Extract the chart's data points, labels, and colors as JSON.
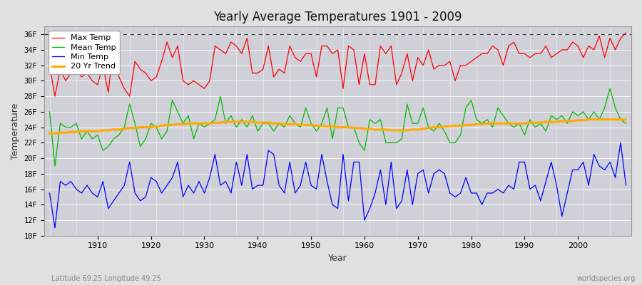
{
  "title": "Yearly Average Temperatures 1901 - 2009",
  "xlabel": "Year",
  "ylabel": "Temperature",
  "subtitle_left": "Latitude 69.25 Longitude 49.25",
  "subtitle_right": "worldspecies.org",
  "start_year": 1901,
  "end_year": 2009,
  "ylim": [
    10,
    37
  ],
  "yticks": [
    10,
    12,
    14,
    16,
    18,
    20,
    22,
    24,
    26,
    28,
    30,
    32,
    34,
    36
  ],
  "ytick_labels": [
    "10F",
    "12F",
    "14F",
    "16F",
    "18F",
    "20F",
    "22F",
    "24F",
    "26F",
    "28F",
    "30F",
    "32F",
    "34F",
    "36F"
  ],
  "max_temp_color": "#ff0000",
  "mean_temp_color": "#00bb00",
  "min_temp_color": "#0000ff",
  "trend_color": "#ffaa00",
  "bg_color": "#e0e0e0",
  "plot_bg_color": "#d0d0d8",
  "grid_color": "#ffffff",
  "legend_labels": [
    "Max Temp",
    "Mean Temp",
    "Min Temp",
    "20 Yr Trend"
  ],
  "max_temp": [
    32.0,
    28.0,
    31.5,
    30.0,
    31.0,
    31.5,
    30.5,
    31.0,
    30.0,
    29.5,
    32.0,
    28.5,
    34.5,
    30.5,
    29.0,
    28.0,
    32.5,
    31.5,
    31.0,
    30.0,
    30.5,
    32.5,
    35.0,
    33.0,
    34.5,
    30.0,
    29.5,
    30.0,
    29.5,
    29.0,
    30.0,
    34.5,
    34.0,
    33.5,
    35.0,
    34.5,
    33.5,
    35.5,
    31.0,
    31.0,
    31.5,
    34.5,
    30.5,
    31.5,
    31.0,
    34.5,
    33.0,
    32.5,
    33.5,
    33.5,
    30.5,
    34.5,
    34.5,
    33.5,
    34.0,
    29.0,
    34.5,
    34.0,
    29.5,
    33.5,
    29.5,
    29.5,
    34.5,
    33.5,
    34.5,
    29.5,
    31.0,
    33.5,
    30.0,
    33.0,
    32.0,
    34.0,
    31.5,
    32.0,
    32.0,
    32.5,
    30.0,
    32.0,
    32.0,
    32.5,
    33.0,
    33.5,
    33.5,
    34.5,
    34.0,
    32.0,
    34.5,
    35.0,
    33.5,
    33.5,
    33.0,
    33.5,
    33.5,
    34.5,
    33.0,
    33.5,
    34.0,
    34.0,
    35.0,
    34.5,
    33.0,
    34.5,
    34.0,
    35.8,
    33.0,
    35.5,
    34.0,
    35.5,
    36.2
  ],
  "mean_temp": [
    26.0,
    19.0,
    24.5,
    24.0,
    24.0,
    24.5,
    22.5,
    23.5,
    22.5,
    23.0,
    21.0,
    21.5,
    22.5,
    23.0,
    24.0,
    27.0,
    24.5,
    21.5,
    22.5,
    24.5,
    24.0,
    22.5,
    23.5,
    27.5,
    26.0,
    24.5,
    25.5,
    22.5,
    24.5,
    24.0,
    24.5,
    25.0,
    28.0,
    24.5,
    25.5,
    24.0,
    25.0,
    24.0,
    25.5,
    23.5,
    24.5,
    24.5,
    23.5,
    24.5,
    24.0,
    25.5,
    24.5,
    24.0,
    26.5,
    24.5,
    23.5,
    24.5,
    26.5,
    22.5,
    26.5,
    26.5,
    24.0,
    24.0,
    22.0,
    21.0,
    25.0,
    24.5,
    25.0,
    22.0,
    22.0,
    22.0,
    22.5,
    27.0,
    24.5,
    24.5,
    26.5,
    24.0,
    23.5,
    24.5,
    23.5,
    22.0,
    22.0,
    23.0,
    26.5,
    27.5,
    25.0,
    24.5,
    25.0,
    24.0,
    26.5,
    25.5,
    24.5,
    24.0,
    24.5,
    23.0,
    25.0,
    24.0,
    24.5,
    23.5,
    25.5,
    25.0,
    25.5,
    24.5,
    26.0,
    25.5,
    26.0,
    25.0,
    26.0,
    25.0,
    26.5,
    29.0,
    26.5,
    25.0,
    24.5
  ],
  "min_temp": [
    15.5,
    11.0,
    17.0,
    16.5,
    17.0,
    16.0,
    15.5,
    16.5,
    15.5,
    15.0,
    17.0,
    13.5,
    14.5,
    15.5,
    16.5,
    19.5,
    15.5,
    14.5,
    15.0,
    17.5,
    17.0,
    15.5,
    16.5,
    17.5,
    19.5,
    15.0,
    16.5,
    15.5,
    17.0,
    15.5,
    17.5,
    20.5,
    16.5,
    17.0,
    15.5,
    19.5,
    16.5,
    20.5,
    16.0,
    16.5,
    16.5,
    21.0,
    20.5,
    16.5,
    15.5,
    19.5,
    15.5,
    16.5,
    19.5,
    16.5,
    16.0,
    20.5,
    17.0,
    14.0,
    13.5,
    20.5,
    14.5,
    19.5,
    19.5,
    12.0,
    13.5,
    15.5,
    18.5,
    14.0,
    19.5,
    13.5,
    14.5,
    18.5,
    14.0,
    18.0,
    18.5,
    15.5,
    18.0,
    18.5,
    18.0,
    15.5,
    15.0,
    15.5,
    17.5,
    15.5,
    15.5,
    14.0,
    15.5,
    15.5,
    16.0,
    15.5,
    16.5,
    16.0,
    19.5,
    19.5,
    16.0,
    16.5,
    14.5,
    17.0,
    19.5,
    16.5,
    12.5,
    15.5,
    18.5,
    18.5,
    19.5,
    16.5,
    20.5,
    19.0,
    18.5,
    19.5,
    17.5,
    22.0,
    16.5
  ],
  "trend": [
    23.2,
    23.2,
    23.3,
    23.3,
    23.4,
    23.4,
    23.5,
    23.5,
    23.5,
    23.5,
    23.6,
    23.6,
    23.7,
    23.7,
    23.8,
    23.9,
    23.9,
    24.0,
    24.0,
    24.0,
    24.1,
    24.2,
    24.3,
    24.3,
    24.4,
    24.4,
    24.5,
    24.5,
    24.5,
    24.5,
    24.5,
    24.6,
    24.6,
    24.7,
    24.7,
    24.7,
    24.7,
    24.7,
    24.7,
    24.6,
    24.6,
    24.6,
    24.5,
    24.5,
    24.4,
    24.4,
    24.4,
    24.3,
    24.3,
    24.3,
    24.2,
    24.2,
    24.1,
    24.1,
    24.0,
    24.0,
    24.0,
    23.9,
    23.9,
    23.8,
    23.8,
    23.7,
    23.7,
    23.7,
    23.6,
    23.6,
    23.6,
    23.6,
    23.7,
    23.7,
    23.8,
    23.9,
    24.0,
    24.0,
    24.1,
    24.1,
    24.2,
    24.2,
    24.3,
    24.3,
    24.4,
    24.4,
    24.5,
    24.5,
    24.5,
    24.5,
    24.5,
    24.5,
    24.5,
    24.5,
    24.6,
    24.6,
    24.6,
    24.7,
    24.7,
    24.7,
    24.8,
    24.8,
    24.8,
    24.9,
    24.9,
    25.0,
    25.0,
    25.0,
    25.0,
    25.0,
    25.0,
    25.0,
    25.0
  ]
}
